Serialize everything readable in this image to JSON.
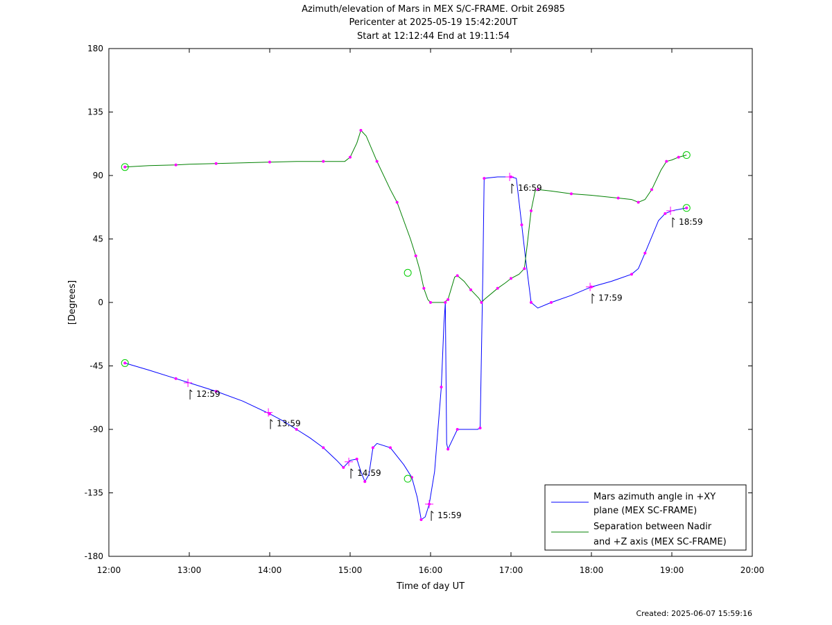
{
  "chart_data": {
    "type": "line",
    "title_lines": [
      "Azimuth/elevation of Mars in MEX S/C-FRAME.  Orbit 26985",
      "Pericenter at 2025-05-19 15:42:20UT",
      "Start at 12:12:44 End at 19:11:54"
    ],
    "xlabel": "Time of day UT",
    "ylabel": "[Degrees]",
    "xlim": [
      "12:00",
      "20:00"
    ],
    "ylim": [
      -180,
      180
    ],
    "x_ticks": [
      "12:00",
      "13:00",
      "14:00",
      "15:00",
      "16:00",
      "17:00",
      "18:00",
      "19:00",
      "20:00"
    ],
    "y_ticks": [
      "180",
      "135",
      "90",
      "45",
      "0",
      "-45",
      "-90",
      "-135",
      "-180"
    ],
    "legend_position": "bottom-right",
    "series": [
      {
        "name": "Mars azimuth angle in +XY plane (MEX SC-FRAME)",
        "legend_lines": [
          "Mars azimuth angle in +XY",
          "plane (MEX SC-FRAME)"
        ],
        "color": "#0000ff",
        "points": [
          [
            "12:12",
            -43
          ],
          [
            "12:30",
            -48
          ],
          [
            "12:50",
            -54
          ],
          [
            "13:00",
            -57
          ],
          [
            "13:20",
            -63
          ],
          [
            "13:40",
            -70
          ],
          [
            "14:00",
            -79
          ],
          [
            "14:10",
            -84
          ],
          [
            "14:20",
            -90
          ],
          [
            "14:30",
            -96
          ],
          [
            "14:40",
            -103
          ],
          [
            "14:50",
            -112
          ],
          [
            "14:55",
            -117
          ],
          [
            "15:00",
            -112
          ],
          [
            "15:05",
            -111
          ],
          [
            "15:08",
            -120
          ],
          [
            "15:11",
            -127
          ],
          [
            "15:14",
            -122
          ],
          [
            "15:17",
            -103
          ],
          [
            "15:20",
            -100
          ],
          [
            "15:30",
            -103
          ],
          [
            "15:40",
            -115
          ],
          [
            "15:46",
            -124
          ],
          [
            "15:50",
            -138
          ],
          [
            "15:53",
            -154
          ],
          [
            "15:56",
            -152
          ],
          [
            "15:59",
            -143
          ],
          [
            "16:03",
            -120
          ],
          [
            "16:08",
            -60
          ],
          [
            "16:10",
            -15
          ],
          [
            "16:11",
            0
          ],
          [
            "16:12",
            -100
          ],
          [
            "16:13",
            -104
          ],
          [
            "16:16",
            -98
          ],
          [
            "16:20",
            -90
          ],
          [
            "16:35",
            -90
          ],
          [
            "16:37",
            -89
          ],
          [
            "16:39",
            20
          ],
          [
            "16:40",
            88
          ],
          [
            "16:50",
            89
          ],
          [
            "17:00",
            89
          ],
          [
            "17:04",
            88
          ],
          [
            "17:08",
            55
          ],
          [
            "17:11",
            30
          ],
          [
            "17:15",
            0
          ],
          [
            "17:20",
            -4
          ],
          [
            "17:30",
            0
          ],
          [
            "17:45",
            5
          ],
          [
            "18:00",
            11
          ],
          [
            "18:15",
            15
          ],
          [
            "18:30",
            20
          ],
          [
            "18:35",
            24
          ],
          [
            "18:40",
            35
          ],
          [
            "18:50",
            58
          ],
          [
            "18:55",
            63
          ],
          [
            "19:00",
            65
          ],
          [
            "19:11",
            67
          ]
        ]
      },
      {
        "name": "Separation between Nadir and +Z axis (MEX SC-FRAME)",
        "legend_lines": [
          "Separation between Nadir",
          "and +Z axis (MEX SC-FRAME)"
        ],
        "color": "#008000",
        "points": [
          [
            "12:12",
            96
          ],
          [
            "12:30",
            97
          ],
          [
            "12:50",
            97.5
          ],
          [
            "13:00",
            98
          ],
          [
            "13:20",
            98.5
          ],
          [
            "13:40",
            99
          ],
          [
            "14:00",
            99.5
          ],
          [
            "14:20",
            100
          ],
          [
            "14:40",
            100
          ],
          [
            "14:56",
            100
          ],
          [
            "15:00",
            103
          ],
          [
            "15:05",
            113
          ],
          [
            "15:08",
            122
          ],
          [
            "15:12",
            118
          ],
          [
            "15:20",
            100
          ],
          [
            "15:30",
            80
          ],
          [
            "15:35",
            71
          ],
          [
            "15:45",
            45
          ],
          [
            "15:49",
            33
          ],
          [
            "15:52",
            23
          ],
          [
            "15:55",
            10
          ],
          [
            "15:58",
            2
          ],
          [
            "16:00",
            0
          ],
          [
            "16:10",
            0
          ],
          [
            "16:13",
            2
          ],
          [
            "16:18",
            18
          ],
          [
            "16:20",
            19
          ],
          [
            "16:25",
            15
          ],
          [
            "16:30",
            9
          ],
          [
            "16:36",
            3
          ],
          [
            "16:38",
            0
          ],
          [
            "16:40",
            2
          ],
          [
            "16:50",
            10
          ],
          [
            "16:56",
            14
          ],
          [
            "17:00",
            17
          ],
          [
            "17:06",
            20
          ],
          [
            "17:10",
            24
          ],
          [
            "17:12",
            40
          ],
          [
            "17:15",
            65
          ],
          [
            "17:18",
            79
          ],
          [
            "17:20",
            80
          ],
          [
            "17:30",
            79
          ],
          [
            "17:45",
            77
          ],
          [
            "18:00",
            76
          ],
          [
            "18:20",
            74
          ],
          [
            "18:30",
            73
          ],
          [
            "18:35",
            71
          ],
          [
            "18:40",
            73
          ],
          [
            "18:45",
            80
          ],
          [
            "18:52",
            94
          ],
          [
            "18:56",
            100
          ],
          [
            "19:00",
            101
          ],
          [
            "19:05",
            103
          ],
          [
            "19:11",
            104.5
          ]
        ]
      }
    ],
    "annotations": [
      {
        "label": "12:59",
        "x": "12:59",
        "y": -57
      },
      {
        "label": "13:59",
        "x": "13:59",
        "y": -78
      },
      {
        "label": "14:59",
        "x": "14:59",
        "y": -113
      },
      {
        "label": "15:59",
        "x": "15:59",
        "y": -143
      },
      {
        "label": "16:59",
        "x": "16:59",
        "y": 89
      },
      {
        "label": "17:59",
        "x": "17:59",
        "y": 11
      },
      {
        "label": "18:59",
        "x": "18:59",
        "y": 65
      }
    ],
    "circle_markers": [
      {
        "x": "12:12",
        "y": 96
      },
      {
        "x": "12:12",
        "y": -43
      },
      {
        "x": "15:43",
        "y": 21
      },
      {
        "x": "15:43",
        "y": -125
      },
      {
        "x": "19:11",
        "y": 104.5
      },
      {
        "x": "19:11",
        "y": 67
      }
    ],
    "footer": "Created: 2025-06-07 15:59:16"
  },
  "colors": {
    "marker": "#ff00ff",
    "circle": "#00cc00"
  }
}
